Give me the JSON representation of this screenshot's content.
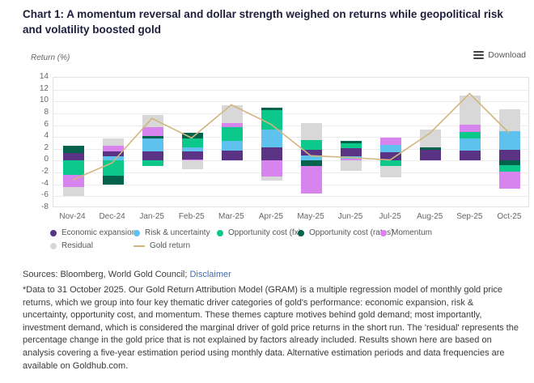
{
  "title": "Chart 1: A momentum reversal and dollar strength weighed on returns while geopolitical risk and volatility boosted gold",
  "toolbar": {
    "download_label": "Download"
  },
  "footer": {
    "sources_prefix": "Sources: Bloomberg, World Gold Council; ",
    "disclaimer_link": "Disclaimer",
    "footnote": "*Data to 31 October 2025. Our Gold Return Attribution Model (GRAM) is a multiple regression model of monthly gold price returns, which we group into four key thematic driver categories of gold's performance: economic expansion, risk & uncertainty, opportunity cost, and momentum. These themes capture motives behind gold demand; most importantly, investment demand, which is considered the marginal driver of gold price returns in the short run. The 'residual' represents the percentage change in the gold price that is not explained by factors already included. Results shown here are based on analysis covering a five-year estimation period using monthly data. Alternative estimation periods and data frequencies are available on Goldhub.com."
  },
  "chart_data": {
    "type": "bar",
    "subtype": "stacked-column-with-line",
    "ylabel": "Return (%)",
    "ylim": [
      -8,
      14
    ],
    "ytick_step": 2,
    "grid": true,
    "legend_position": "bottom",
    "categories": [
      "Nov-24",
      "Dec-24",
      "Jan-25",
      "Feb-25",
      "Mar-25",
      "Apr-25",
      "May-25",
      "Jun-25",
      "Jul-25",
      "Aug-25",
      "Sep-25",
      "Oct-25"
    ],
    "colors": {
      "econ": "#5A3384",
      "risk": "#5FC1EE",
      "fx": "#0CC98B",
      "rates": "#01634B",
      "momentum": "#D884EE",
      "residual": "#D8D8D8",
      "gold": "#D2B57D"
    },
    "legend": [
      {
        "key": "econ",
        "label": "Economic expansion",
        "type": "dot"
      },
      {
        "key": "risk",
        "label": "Risk & uncertainty",
        "type": "dot"
      },
      {
        "key": "fx",
        "label": "Opportunity cost (fx)",
        "type": "dot"
      },
      {
        "key": "rates",
        "label": "Opportunity cost (rates)",
        "type": "dot"
      },
      {
        "key": "momentum",
        "label": "Momentum",
        "type": "dot"
      },
      {
        "key": "residual",
        "label": "Residual",
        "type": "dot"
      },
      {
        "key": "gold",
        "label": "Gold return",
        "type": "line"
      }
    ],
    "series": [
      {
        "name": "Economic expansion",
        "key": "econ",
        "values": [
          1.3,
          0.9,
          1.6,
          1.4,
          1.7,
          2.2,
          1.0,
          1.3,
          1.4,
          1.8,
          1.7,
          1.8
        ]
      },
      {
        "name": "Risk & uncertainty",
        "key": "risk",
        "values": [
          0.0,
          0.7,
          2.1,
          0.6,
          1.7,
          3.0,
          0.9,
          0.5,
          1.3,
          0.0,
          2.1,
          3.2
        ]
      },
      {
        "name": "Opportunity cost (fx)",
        "key": "fx",
        "values": [
          -2.4,
          -2.6,
          -0.9,
          1.5,
          2.3,
          3.4,
          1.6,
          0.8,
          -0.9,
          0.0,
          1.0,
          -1.2
        ]
      },
      {
        "name": "Opportunity cost (rates)",
        "key": "rates",
        "values": [
          1.2,
          -1.4,
          0.4,
          1.0,
          0.0,
          0.3,
          -0.9,
          0.5,
          0.0,
          0.5,
          0.0,
          -0.7
        ]
      },
      {
        "name": "Momentum",
        "key": "momentum",
        "values": [
          -2.1,
          0.9,
          1.6,
          0.2,
          0.7,
          -2.7,
          -4.6,
          0.3,
          1.2,
          0.0,
          1.3,
          -2.8
        ]
      },
      {
        "name": "Residual",
        "key": "residual",
        "values": [
          -1.4,
          1.2,
          2.0,
          -1.4,
          2.9,
          -0.6,
          2.9,
          -1.7,
          -1.9,
          3.0,
          4.9,
          3.7
        ]
      },
      {
        "name": "Gold return",
        "key": "gold",
        "role": "line",
        "values": [
          -3.4,
          -0.5,
          7.0,
          3.7,
          9.3,
          6.0,
          0.7,
          0.4,
          0.0,
          4.5,
          11.2,
          4.5
        ]
      }
    ],
    "months": [
      {
        "label": "Nov-24",
        "pos": [
          [
            "econ",
            1.3
          ],
          [
            "rates",
            1.2
          ]
        ],
        "neg": [
          [
            "fx",
            2.4
          ],
          [
            "momentum",
            2.1
          ],
          [
            "residual",
            1.4
          ]
        ],
        "gold": -3.4
      },
      {
        "label": "Dec-24",
        "pos": [
          [
            "risk",
            0.7
          ],
          [
            "econ",
            0.9
          ],
          [
            "momentum",
            0.9
          ],
          [
            "residual",
            1.2
          ]
        ],
        "neg": [
          [
            "fx",
            2.6
          ],
          [
            "rates",
            1.4
          ]
        ],
        "gold": -0.5
      },
      {
        "label": "Jan-25",
        "pos": [
          [
            "econ",
            1.6
          ],
          [
            "risk",
            2.1
          ],
          [
            "rates",
            0.4
          ],
          [
            "momentum",
            1.6
          ],
          [
            "residual",
            2.0
          ]
        ],
        "neg": [
          [
            "fx",
            0.9
          ]
        ],
        "gold": 7.0
      },
      {
        "label": "Feb-25",
        "pos": [
          [
            "momentum",
            0.2
          ],
          [
            "econ",
            1.4
          ],
          [
            "risk",
            0.6
          ],
          [
            "fx",
            1.5
          ],
          [
            "rates",
            1.0
          ]
        ],
        "neg": [
          [
            "residual",
            1.4
          ]
        ],
        "gold": 3.7
      },
      {
        "label": "Mar-25",
        "pos": [
          [
            "econ",
            1.7
          ],
          [
            "risk",
            1.7
          ],
          [
            "fx",
            2.3
          ],
          [
            "momentum",
            0.7
          ],
          [
            "residual",
            2.9
          ]
        ],
        "neg": [],
        "gold": 9.3
      },
      {
        "label": "Apr-25",
        "pos": [
          [
            "econ",
            2.2
          ],
          [
            "risk",
            3.0
          ],
          [
            "fx",
            3.4
          ],
          [
            "rates",
            0.3
          ]
        ],
        "neg": [
          [
            "momentum",
            2.7
          ],
          [
            "residual",
            0.6
          ]
        ],
        "gold": 6.0
      },
      {
        "label": "May-25",
        "pos": [
          [
            "risk",
            0.9
          ],
          [
            "econ",
            1.0
          ],
          [
            "fx",
            1.6
          ],
          [
            "residual",
            2.9
          ]
        ],
        "neg": [
          [
            "rates",
            0.9
          ],
          [
            "momentum",
            4.6
          ]
        ],
        "gold": 0.7
      },
      {
        "label": "Jun-25",
        "pos": [
          [
            "momentum",
            0.3
          ],
          [
            "risk",
            0.5
          ],
          [
            "econ",
            1.3
          ],
          [
            "fx",
            0.8
          ],
          [
            "rates",
            0.5
          ]
        ],
        "neg": [
          [
            "residual",
            1.7
          ]
        ],
        "gold": 0.4
      },
      {
        "label": "Jul-25",
        "pos": [
          [
            "econ",
            1.4
          ],
          [
            "risk",
            1.3
          ],
          [
            "momentum",
            1.2
          ]
        ],
        "neg": [
          [
            "fx",
            0.9
          ],
          [
            "residual",
            1.9
          ]
        ],
        "gold": 0.0
      },
      {
        "label": "Aug-25",
        "pos": [
          [
            "econ",
            1.8
          ],
          [
            "rates",
            0.5
          ],
          [
            "residual",
            3.0
          ]
        ],
        "neg": [],
        "gold": 4.5
      },
      {
        "label": "Sep-25",
        "pos": [
          [
            "econ",
            1.7
          ],
          [
            "risk",
            2.1
          ],
          [
            "fx",
            1.0
          ],
          [
            "momentum",
            1.3
          ],
          [
            "residual",
            4.9
          ]
        ],
        "neg": [],
        "gold": 11.2
      },
      {
        "label": "Oct-25",
        "pos": [
          [
            "econ",
            1.8
          ],
          [
            "risk",
            3.2
          ],
          [
            "residual",
            3.7
          ]
        ],
        "neg": [
          [
            "rates",
            0.7
          ],
          [
            "fx",
            1.2
          ],
          [
            "momentum",
            2.8
          ]
        ],
        "gold": 4.5
      }
    ]
  }
}
